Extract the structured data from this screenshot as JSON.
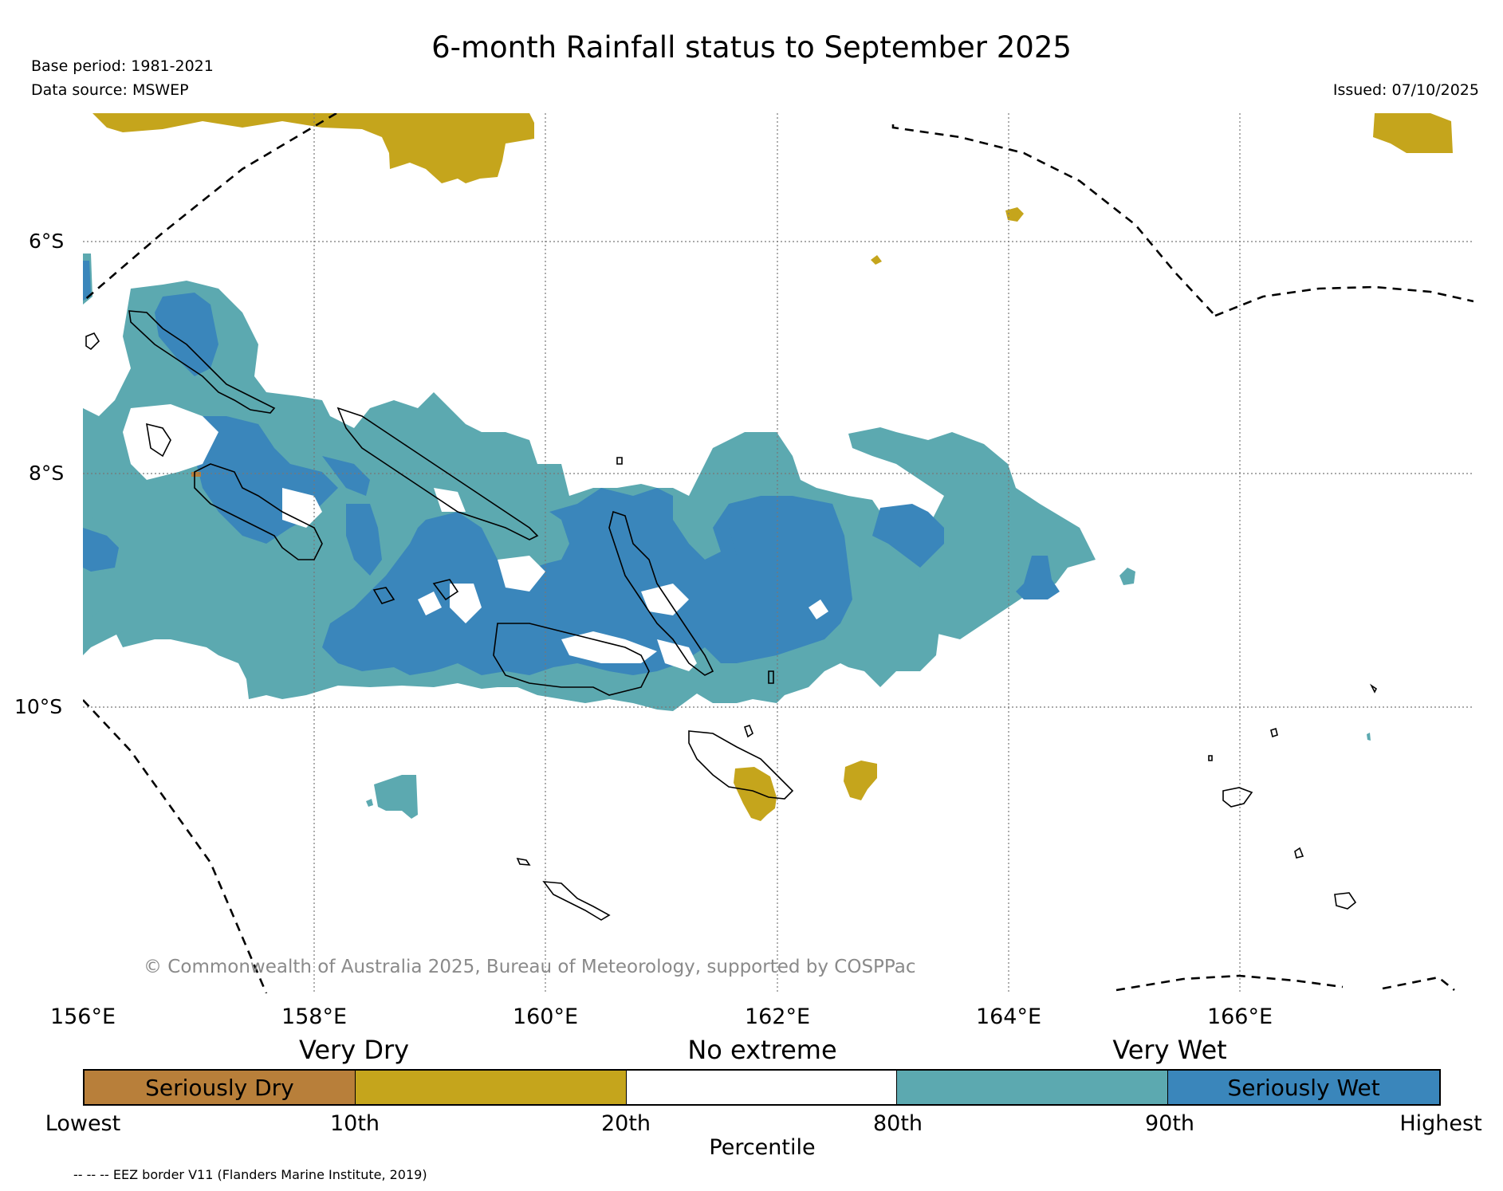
{
  "title": "6-month Rainfall status to September 2025",
  "base_period": "Base period: 1981-2021",
  "data_source": "Data source: MSWEP",
  "issued": "Issued: 07/10/2025",
  "copyright": "© Commonwealth of Australia 2025, Bureau of Meteorology, supported by COSPPac",
  "eez_note": "-- -- -- EEZ border V11 (Flanders Marine Institute, 2019)",
  "map": {
    "lat_labels": [
      "6°S",
      "8°S",
      "10°S"
    ],
    "lon_labels": [
      "156°E",
      "158°E",
      "160°E",
      "162°E",
      "164°E",
      "166°E"
    ]
  },
  "legend": {
    "categories": [
      "Very Dry",
      "No extreme",
      "Very Wet"
    ],
    "segments": [
      {
        "label": "Seriously Dry",
        "color": "#b87f3a"
      },
      {
        "label": "",
        "color": "#c5a51c"
      },
      {
        "label": "",
        "color": "#ffffff"
      },
      {
        "label": "",
        "color": "#5ca9b0"
      },
      {
        "label": "Seriously Wet",
        "color": "#3a86bb"
      }
    ],
    "percentiles": [
      "Lowest",
      "10th",
      "20th",
      "80th",
      "90th",
      "Highest"
    ],
    "axis_label": "Percentile"
  },
  "colors": {
    "seriously_dry": "#b87f3a",
    "very_dry": "#c5a51c",
    "very_wet": "#5ca9b0",
    "seriously_wet": "#3a86bb"
  }
}
